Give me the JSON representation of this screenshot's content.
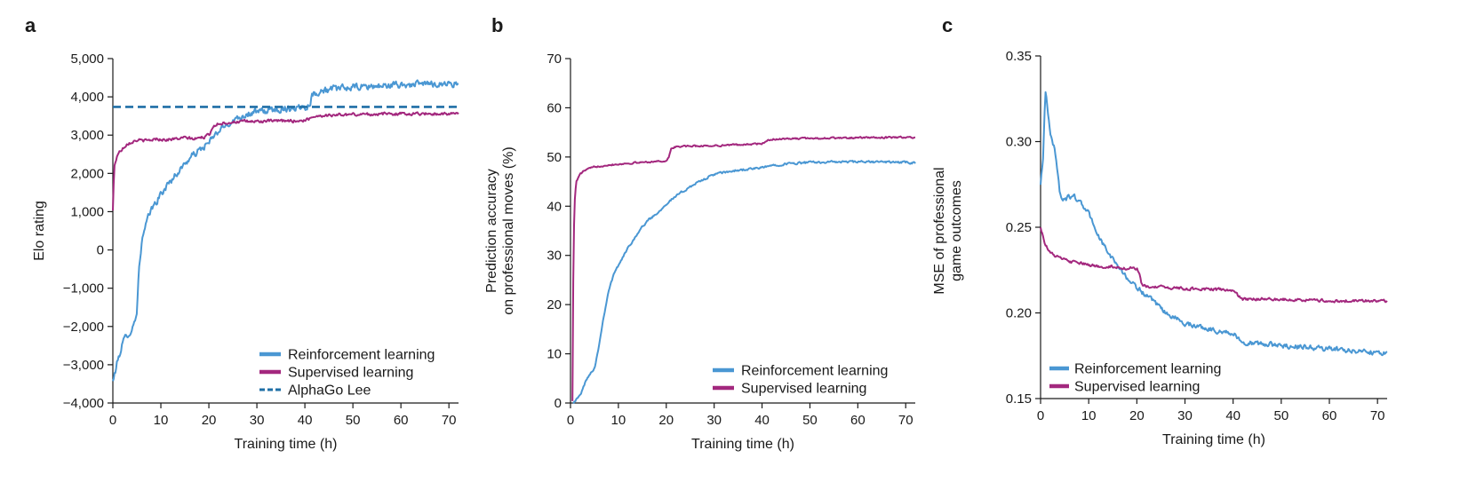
{
  "colors": {
    "reinforcement": "#4a97d3",
    "supervised": "#a3287e",
    "alphago": "#1f6fa6",
    "axis": "#1a1a1a"
  },
  "panels": [
    {
      "letter": "a"
    },
    {
      "letter": "b"
    },
    {
      "letter": "c"
    }
  ],
  "chart_data": [
    {
      "type": "line",
      "panel": "a",
      "xlabel": "Training time (h)",
      "ylabel": "Elo rating",
      "xlim": [
        0,
        72
      ],
      "ylim": [
        -4000,
        5000
      ],
      "xticks": [
        0,
        10,
        20,
        30,
        40,
        50,
        60,
        70
      ],
      "yticks": [
        -4000,
        -3000,
        -2000,
        -1000,
        0,
        1000,
        2000,
        3000,
        4000,
        5000
      ],
      "ytick_labels": [
        "−4,000",
        "−3,000",
        "−2,000",
        "−1,000",
        "0",
        "1,000",
        "2,000",
        "3,000",
        "4,000",
        "5,000"
      ],
      "legend_position": "bottom-right",
      "series": [
        {
          "name": "Reinforcement learning",
          "color_key": "reinforcement",
          "noise": 140,
          "x": [
            0,
            1,
            2,
            3,
            4,
            5,
            5.5,
            6,
            7,
            8,
            9,
            10,
            12,
            14,
            16,
            18,
            20,
            22,
            24,
            26,
            28,
            30,
            33,
            36,
            38,
            40,
            41,
            41.5,
            43,
            46,
            50,
            54,
            58,
            62,
            66,
            70,
            72
          ],
          "y": [
            -3450,
            -2900,
            -2450,
            -2200,
            -2100,
            -1600,
            -400,
            200,
            700,
            1050,
            1250,
            1450,
            1800,
            2100,
            2400,
            2600,
            2800,
            3100,
            3300,
            3450,
            3550,
            3600,
            3650,
            3700,
            3720,
            3750,
            3800,
            4050,
            4150,
            4200,
            4250,
            4270,
            4300,
            4320,
            4340,
            4350,
            4340
          ]
        },
        {
          "name": "Supervised learning",
          "color_key": "supervised",
          "noise": 60,
          "x": [
            0,
            0.3,
            1,
            2,
            3,
            5,
            7,
            9,
            11,
            13,
            15,
            17,
            19,
            20,
            21,
            22,
            24,
            26,
            30,
            35,
            40,
            41,
            42,
            45,
            50,
            60,
            70,
            72
          ],
          "y": [
            1020,
            2200,
            2500,
            2650,
            2780,
            2870,
            2850,
            2900,
            2880,
            2900,
            2930,
            2900,
            2950,
            3000,
            3250,
            3300,
            3330,
            3350,
            3360,
            3370,
            3380,
            3440,
            3500,
            3520,
            3540,
            3560,
            3560,
            3550
          ]
        },
        {
          "name": "AlphaGo Lee",
          "color_key": "alphago",
          "dashed": true,
          "noise": 0,
          "x": [
            0,
            72
          ],
          "y": [
            3739,
            3739
          ]
        }
      ]
    },
    {
      "type": "line",
      "panel": "b",
      "xlabel": "Training time (h)",
      "ylabel": "Prediction accuracy on professional moves (%)",
      "ylabel_lines": [
        "Prediction accuracy",
        "on professional moves (%)"
      ],
      "xlim": [
        0,
        72
      ],
      "ylim": [
        0,
        70
      ],
      "xticks": [
        0,
        10,
        20,
        30,
        40,
        50,
        60,
        70
      ],
      "yticks": [
        0,
        10,
        20,
        30,
        40,
        50,
        60,
        70
      ],
      "ytick_labels": [
        "0",
        "10",
        "20",
        "30",
        "40",
        "50",
        "60",
        "70"
      ],
      "legend_position": "bottom-right",
      "series": [
        {
          "name": "Reinforcement learning",
          "color_key": "reinforcement",
          "noise": 0.35,
          "x": [
            0.5,
            1,
            2,
            3,
            4,
            5,
            6,
            7,
            8,
            9,
            10,
            12,
            14,
            16,
            18,
            20,
            22,
            25,
            28,
            30,
            35,
            40,
            42,
            45,
            50,
            55,
            60,
            65,
            70,
            72
          ],
          "y": [
            0.2,
            0.5,
            1.5,
            4,
            6,
            7,
            12,
            18,
            23,
            26,
            28,
            31.5,
            34.5,
            37,
            38.5,
            40.5,
            42,
            44,
            45.5,
            46.5,
            47.3,
            47.8,
            48.3,
            48.6,
            48.9,
            49.0,
            49.0,
            49.0,
            48.9,
            48.8
          ]
        },
        {
          "name": "Supervised learning",
          "color_key": "supervised",
          "noise": 0.25,
          "x": [
            0.4,
            0.5,
            0.8,
            1.2,
            2,
            3,
            5,
            8,
            12,
            16,
            20,
            20.5,
            21,
            22,
            25,
            30,
            35,
            40,
            41,
            42,
            45,
            50,
            60,
            70,
            72
          ],
          "y": [
            0.5,
            20,
            40,
            45,
            46.5,
            47.3,
            48,
            48.4,
            48.7,
            49,
            49.2,
            49.8,
            51.7,
            52.1,
            52.2,
            52.3,
            52.5,
            52.7,
            53.2,
            53.6,
            53.7,
            53.8,
            53.9,
            54.0,
            54.0
          ]
        }
      ]
    },
    {
      "type": "line",
      "panel": "c",
      "xlabel": "Training time (h)",
      "ylabel": "MSE of professional game outcomes",
      "ylabel_lines": [
        "MSE of professional",
        "game outcomes"
      ],
      "xlim": [
        0,
        72
      ],
      "ylim": [
        0.15,
        0.35
      ],
      "xticks": [
        0,
        10,
        20,
        30,
        40,
        50,
        60,
        70
      ],
      "yticks": [
        0.15,
        0.2,
        0.25,
        0.3,
        0.35
      ],
      "ytick_labels": [
        "0.15",
        "0.20",
        "0.25",
        "0.30",
        "0.35"
      ],
      "legend_position": "bottom-left",
      "series": [
        {
          "name": "Reinforcement learning",
          "color_key": "reinforcement",
          "noise": 0.0022,
          "x": [
            0,
            0.5,
            1,
            1.5,
            2,
            3,
            4,
            5,
            6,
            7,
            8,
            9,
            10,
            11,
            12,
            14,
            16,
            18,
            20,
            22,
            24,
            26,
            28,
            30,
            33,
            36,
            40,
            41,
            42,
            45,
            50,
            55,
            60,
            65,
            70,
            72
          ],
          "y": [
            0.275,
            0.29,
            0.33,
            0.318,
            0.305,
            0.295,
            0.27,
            0.265,
            0.268,
            0.268,
            0.265,
            0.262,
            0.258,
            0.252,
            0.245,
            0.235,
            0.228,
            0.22,
            0.215,
            0.21,
            0.205,
            0.2,
            0.197,
            0.194,
            0.192,
            0.19,
            0.188,
            0.185,
            0.183,
            0.182,
            0.181,
            0.18,
            0.179,
            0.178,
            0.177,
            0.177
          ]
        },
        {
          "name": "Supervised learning",
          "color_key": "supervised",
          "noise": 0.0013,
          "x": [
            0,
            0.5,
            1,
            2,
            4,
            6,
            8,
            10,
            12,
            15,
            18,
            20,
            20.5,
            21,
            23,
            26,
            30,
            35,
            40,
            41,
            42,
            45,
            50,
            60,
            70,
            72
          ],
          "y": [
            0.25,
            0.245,
            0.24,
            0.235,
            0.232,
            0.23,
            0.229,
            0.228,
            0.227,
            0.227,
            0.226,
            0.226,
            0.223,
            0.216,
            0.215,
            0.215,
            0.214,
            0.214,
            0.213,
            0.21,
            0.208,
            0.208,
            0.208,
            0.207,
            0.207,
            0.207
          ]
        }
      ]
    }
  ]
}
